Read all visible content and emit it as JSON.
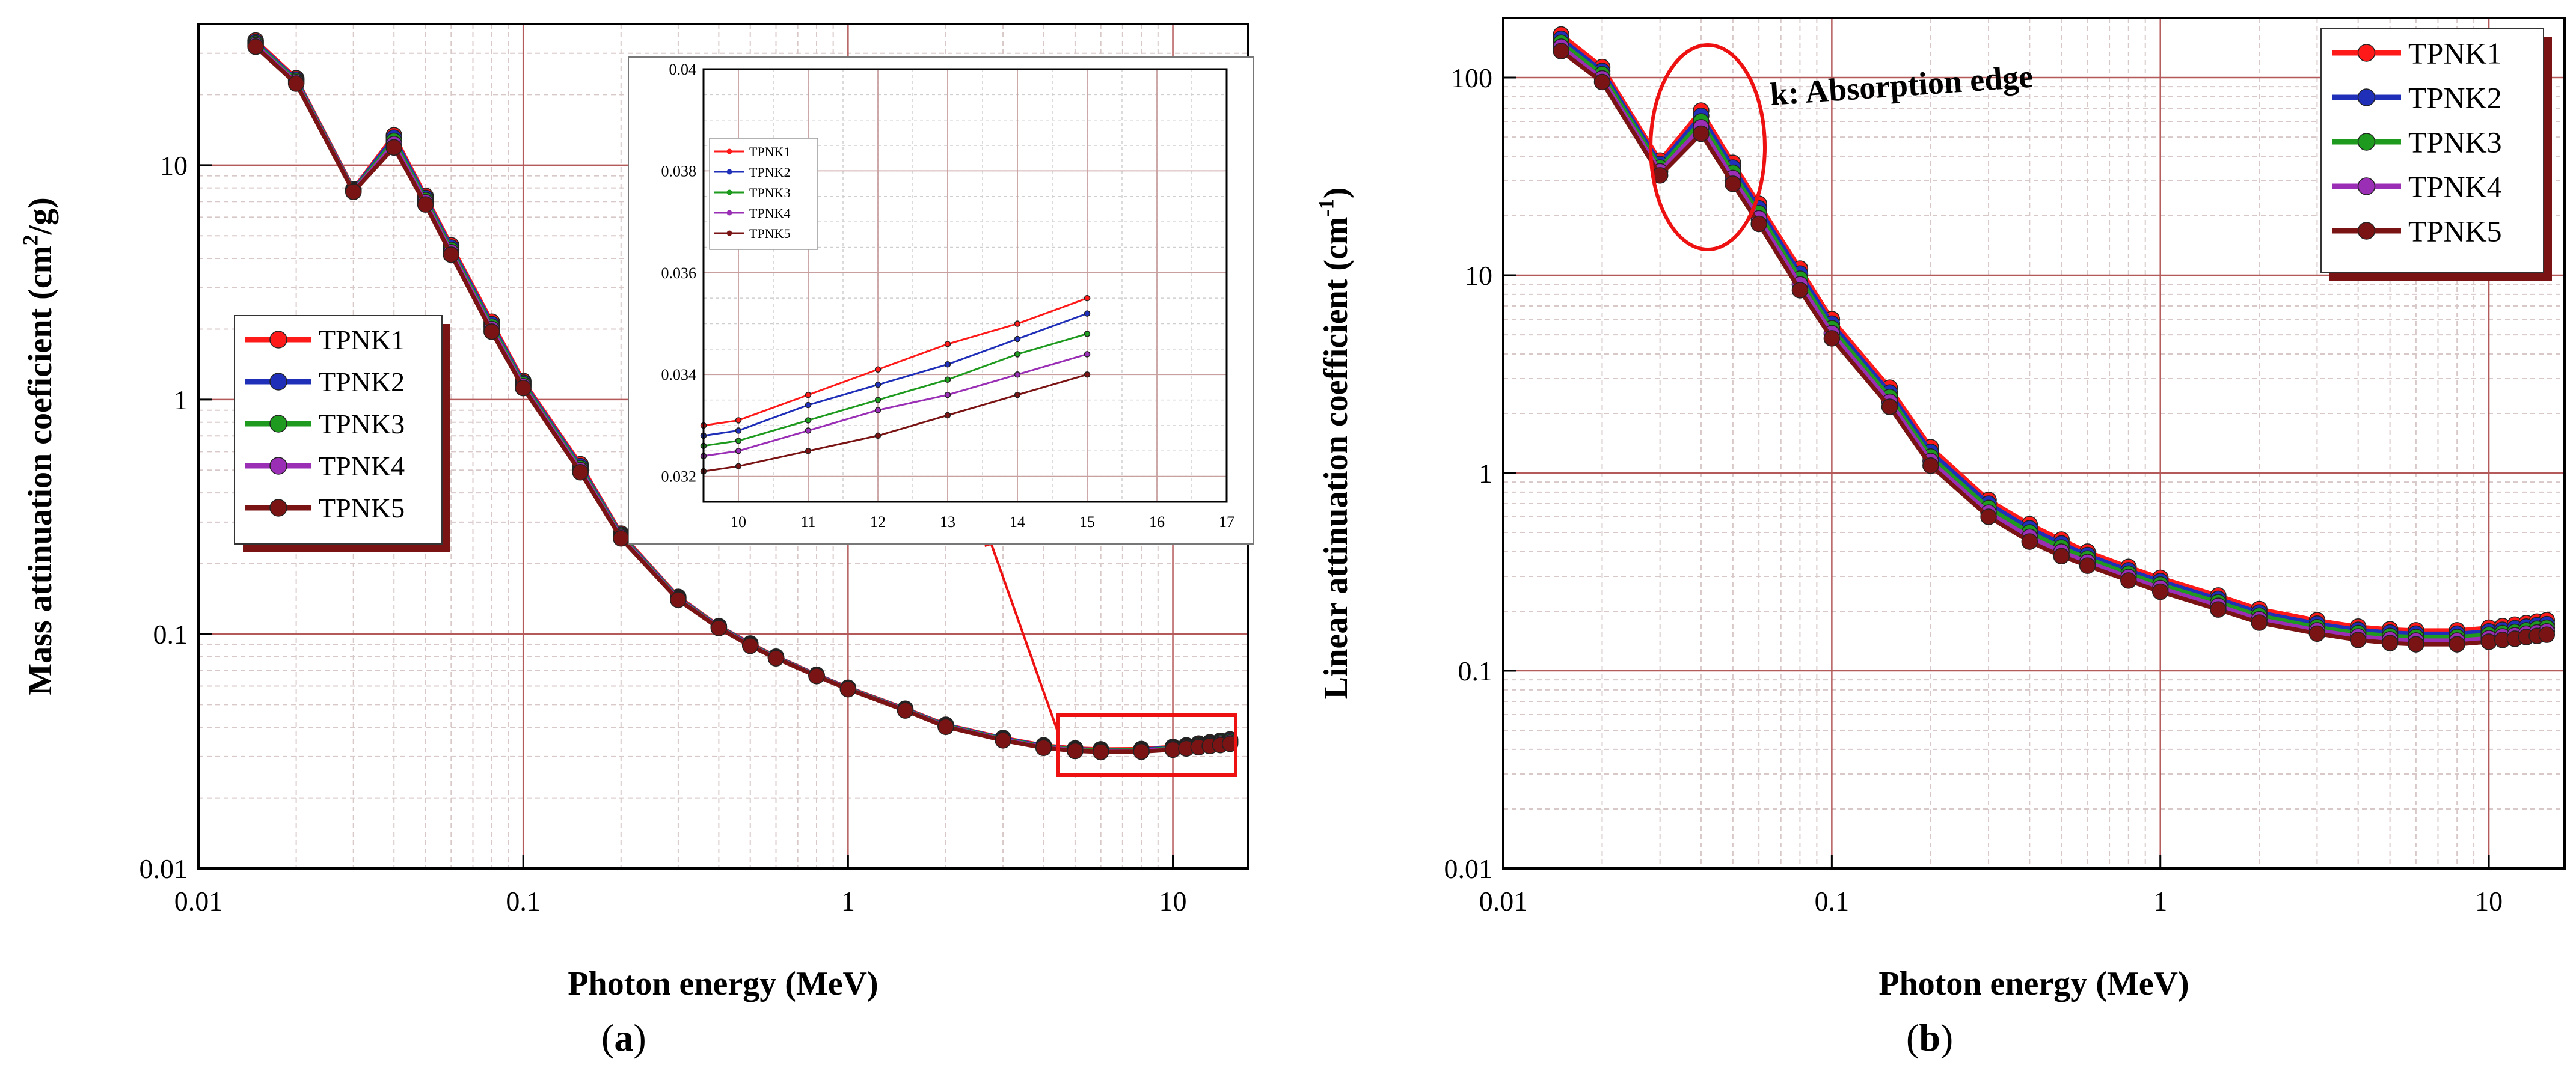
{
  "figure": {
    "panel_a_label": "a",
    "panel_b_label": "b"
  },
  "colors": {
    "TPNK1": "#ff1a1a",
    "TPNK2": "#1f2fb8",
    "TPNK3": "#1e9a1e",
    "TPNK4": "#9a2fb5",
    "TPNK5": "#7a1414",
    "grid_major": "#b45a5a",
    "grid_minor": "#d8c8c8",
    "highlight": "#ee1111",
    "legend_shadow": "#7a1414"
  },
  "chart_data": [
    {
      "id": "a",
      "type": "line",
      "title": "",
      "xlabel": "Photon energy (MeV)",
      "ylabel_main": "Mass attinuation coeficient (cm",
      "ylabel_sup": "2",
      "ylabel_tail": "/g)",
      "xscale": "log",
      "yscale": "log",
      "xlim": [
        0.01,
        17
      ],
      "ylim": [
        0.01,
        40
      ],
      "xticks": [
        0.01,
        0.1,
        1,
        10
      ],
      "xtick_labels": [
        "0.01",
        "0.1",
        "1",
        "10"
      ],
      "yticks": [
        0.01,
        0.1,
        1,
        10
      ],
      "ytick_labels": [
        "0.01",
        "0.1",
        "1",
        "10"
      ],
      "legend": [
        "TPNK1",
        "TPNK2",
        "TPNK3",
        "TPNK4",
        "TPNK5"
      ],
      "legend_position": "center-left",
      "x": [
        0.015,
        0.02,
        0.03,
        0.04,
        0.05,
        0.06,
        0.08,
        0.1,
        0.15,
        0.2,
        0.3,
        0.4,
        0.5,
        0.6,
        0.8,
        1,
        1.5,
        2,
        3,
        4,
        5,
        6,
        8,
        10,
        11,
        12,
        13,
        14,
        15
      ],
      "series": [
        {
          "name": "TPNK1",
          "values": [
            34,
            23.5,
            7.9,
            13.4,
            7.4,
            4.55,
            2.15,
            1.2,
            0.53,
            0.268,
            0.144,
            0.108,
            0.091,
            0.08,
            0.067,
            0.059,
            0.048,
            0.041,
            0.036,
            0.0335,
            0.0325,
            0.0322,
            0.0323,
            0.033,
            0.0335,
            0.0341,
            0.0345,
            0.035,
            0.0355
          ]
        },
        {
          "name": "TPNK2",
          "values": [
            33.5,
            23.2,
            7.85,
            13.1,
            7.25,
            4.45,
            2.1,
            1.18,
            0.52,
            0.265,
            0.143,
            0.1075,
            0.0905,
            0.0797,
            0.0668,
            0.0588,
            0.0478,
            0.0408,
            0.0358,
            0.0333,
            0.0323,
            0.032,
            0.0321,
            0.0328,
            0.0333,
            0.0338,
            0.0342,
            0.0347,
            0.0352
          ]
        },
        {
          "name": "TPNK3",
          "values": [
            33,
            22.9,
            7.8,
            12.7,
            7.1,
            4.35,
            2.05,
            1.16,
            0.51,
            0.262,
            0.142,
            0.107,
            0.09,
            0.0794,
            0.0666,
            0.0586,
            0.0476,
            0.0406,
            0.0356,
            0.0331,
            0.0321,
            0.0318,
            0.0319,
            0.0326,
            0.033,
            0.0335,
            0.0339,
            0.0344,
            0.0348
          ]
        },
        {
          "name": "TPNK4",
          "values": [
            32.5,
            22.6,
            7.75,
            12.3,
            6.95,
            4.25,
            2.0,
            1.14,
            0.5,
            0.259,
            0.141,
            0.1065,
            0.0895,
            0.0791,
            0.0664,
            0.0584,
            0.0474,
            0.0404,
            0.0354,
            0.0329,
            0.0319,
            0.0316,
            0.0317,
            0.0324,
            0.0328,
            0.0332,
            0.0336,
            0.034,
            0.0344
          ]
        },
        {
          "name": "TPNK5",
          "values": [
            32,
            22.3,
            7.7,
            11.9,
            6.8,
            4.15,
            1.95,
            1.12,
            0.49,
            0.256,
            0.14,
            0.106,
            0.089,
            0.0788,
            0.0662,
            0.0582,
            0.0472,
            0.0402,
            0.0352,
            0.0327,
            0.0317,
            0.0314,
            0.0315,
            0.0321,
            0.0325,
            0.0329,
            0.0333,
            0.0336,
            0.034
          ]
        }
      ],
      "inset": {
        "type": "line",
        "xscale": "linear",
        "yscale": "linear",
        "xlim": [
          9.5,
          17
        ],
        "ylim": [
          0.0315,
          0.04
        ],
        "xticks": [
          10,
          11,
          12,
          13,
          14,
          15,
          16,
          17
        ],
        "xtick_labels": [
          "10",
          "11",
          "12",
          "13",
          "14",
          "15",
          "16",
          "17"
        ],
        "yticks": [
          0.032,
          0.034,
          0.036,
          0.038,
          0.04
        ],
        "ytick_labels": [
          "0.032",
          "0.034",
          "0.036",
          "0.038",
          "0.04"
        ],
        "legend": [
          "TPNK1",
          "TPNK2",
          "TPNK3",
          "TPNK4",
          "TPNK5"
        ],
        "legend_position": "top-left",
        "x": [
          9.5,
          10,
          11,
          12,
          13,
          14,
          15
        ],
        "series": [
          {
            "name": "TPNK1",
            "values": [
              0.033,
              0.0331,
              0.0336,
              0.0341,
              0.0346,
              0.035,
              0.0355
            ]
          },
          {
            "name": "TPNK2",
            "values": [
              0.0328,
              0.0329,
              0.0334,
              0.0338,
              0.0342,
              0.0347,
              0.0352
            ]
          },
          {
            "name": "TPNK3",
            "values": [
              0.0326,
              0.0327,
              0.0331,
              0.0335,
              0.0339,
              0.0344,
              0.0348
            ]
          },
          {
            "name": "TPNK4",
            "values": [
              0.0324,
              0.0325,
              0.0329,
              0.0333,
              0.0336,
              0.034,
              0.0344
            ]
          },
          {
            "name": "TPNK5",
            "values": [
              0.0321,
              0.0322,
              0.0325,
              0.0328,
              0.0332,
              0.0336,
              0.034
            ]
          }
        ]
      }
    },
    {
      "id": "b",
      "type": "line",
      "title": "",
      "xlabel": "Photon energy (MeV)",
      "ylabel_main": "Linear attinuation coefficient (cm",
      "ylabel_sup": "-1",
      "ylabel_tail": ")",
      "xscale": "log",
      "yscale": "log",
      "xlim": [
        0.01,
        17
      ],
      "ylim": [
        0.01,
        200
      ],
      "xticks": [
        0.01,
        0.1,
        1,
        10
      ],
      "xtick_labels": [
        "0.01",
        "0.1",
        "1",
        "10"
      ],
      "yticks": [
        0.01,
        0.1,
        1,
        10,
        100
      ],
      "ytick_labels": [
        "0.01",
        "0.1",
        "1",
        "10",
        "100"
      ],
      "legend": [
        "TPNK1",
        "TPNK2",
        "TPNK3",
        "TPNK4",
        "TPNK5"
      ],
      "legend_position": "top-right",
      "annotation": "k: Absorption edge",
      "x": [
        0.015,
        0.02,
        0.03,
        0.04,
        0.05,
        0.06,
        0.08,
        0.1,
        0.15,
        0.2,
        0.3,
        0.4,
        0.5,
        0.6,
        0.8,
        1,
        1.5,
        2,
        3,
        4,
        5,
        6,
        8,
        10,
        11,
        12,
        13,
        14,
        15
      ],
      "series": [
        {
          "name": "TPNK1",
          "values": [
            165,
            113,
            38,
            68,
            37,
            23,
            10.8,
            6.0,
            2.7,
            1.35,
            0.73,
            0.55,
            0.46,
            0.4,
            0.335,
            0.295,
            0.24,
            0.205,
            0.18,
            0.167,
            0.162,
            0.16,
            0.16,
            0.165,
            0.168,
            0.171,
            0.174,
            0.177,
            0.18
          ]
        },
        {
          "name": "TPNK2",
          "values": [
            157,
            108,
            36.5,
            64,
            35,
            21.8,
            10.2,
            5.7,
            2.55,
            1.28,
            0.7,
            0.525,
            0.44,
            0.385,
            0.322,
            0.284,
            0.231,
            0.197,
            0.173,
            0.161,
            0.156,
            0.154,
            0.154,
            0.158,
            0.161,
            0.164,
            0.167,
            0.17,
            0.172
          ]
        },
        {
          "name": "TPNK3",
          "values": [
            150,
            104,
            35,
            60,
            33,
            20.6,
            9.6,
            5.4,
            2.42,
            1.21,
            0.665,
            0.5,
            0.42,
            0.37,
            0.31,
            0.273,
            0.222,
            0.19,
            0.166,
            0.155,
            0.15,
            0.148,
            0.148,
            0.152,
            0.155,
            0.157,
            0.16,
            0.163,
            0.165
          ]
        },
        {
          "name": "TPNK4",
          "values": [
            143,
            99,
            33.5,
            56,
            31,
            19.4,
            9.0,
            5.1,
            2.29,
            1.15,
            0.63,
            0.475,
            0.4,
            0.355,
            0.298,
            0.262,
            0.213,
            0.182,
            0.16,
            0.149,
            0.144,
            0.142,
            0.142,
            0.146,
            0.149,
            0.151,
            0.154,
            0.156,
            0.158
          ]
        },
        {
          "name": "TPNK5",
          "values": [
            136,
            95,
            32,
            52,
            29,
            18.2,
            8.4,
            4.8,
            2.16,
            1.09,
            0.6,
            0.45,
            0.38,
            0.34,
            0.286,
            0.251,
            0.204,
            0.175,
            0.154,
            0.143,
            0.138,
            0.136,
            0.136,
            0.14,
            0.143,
            0.145,
            0.148,
            0.15,
            0.152
          ]
        }
      ]
    }
  ]
}
